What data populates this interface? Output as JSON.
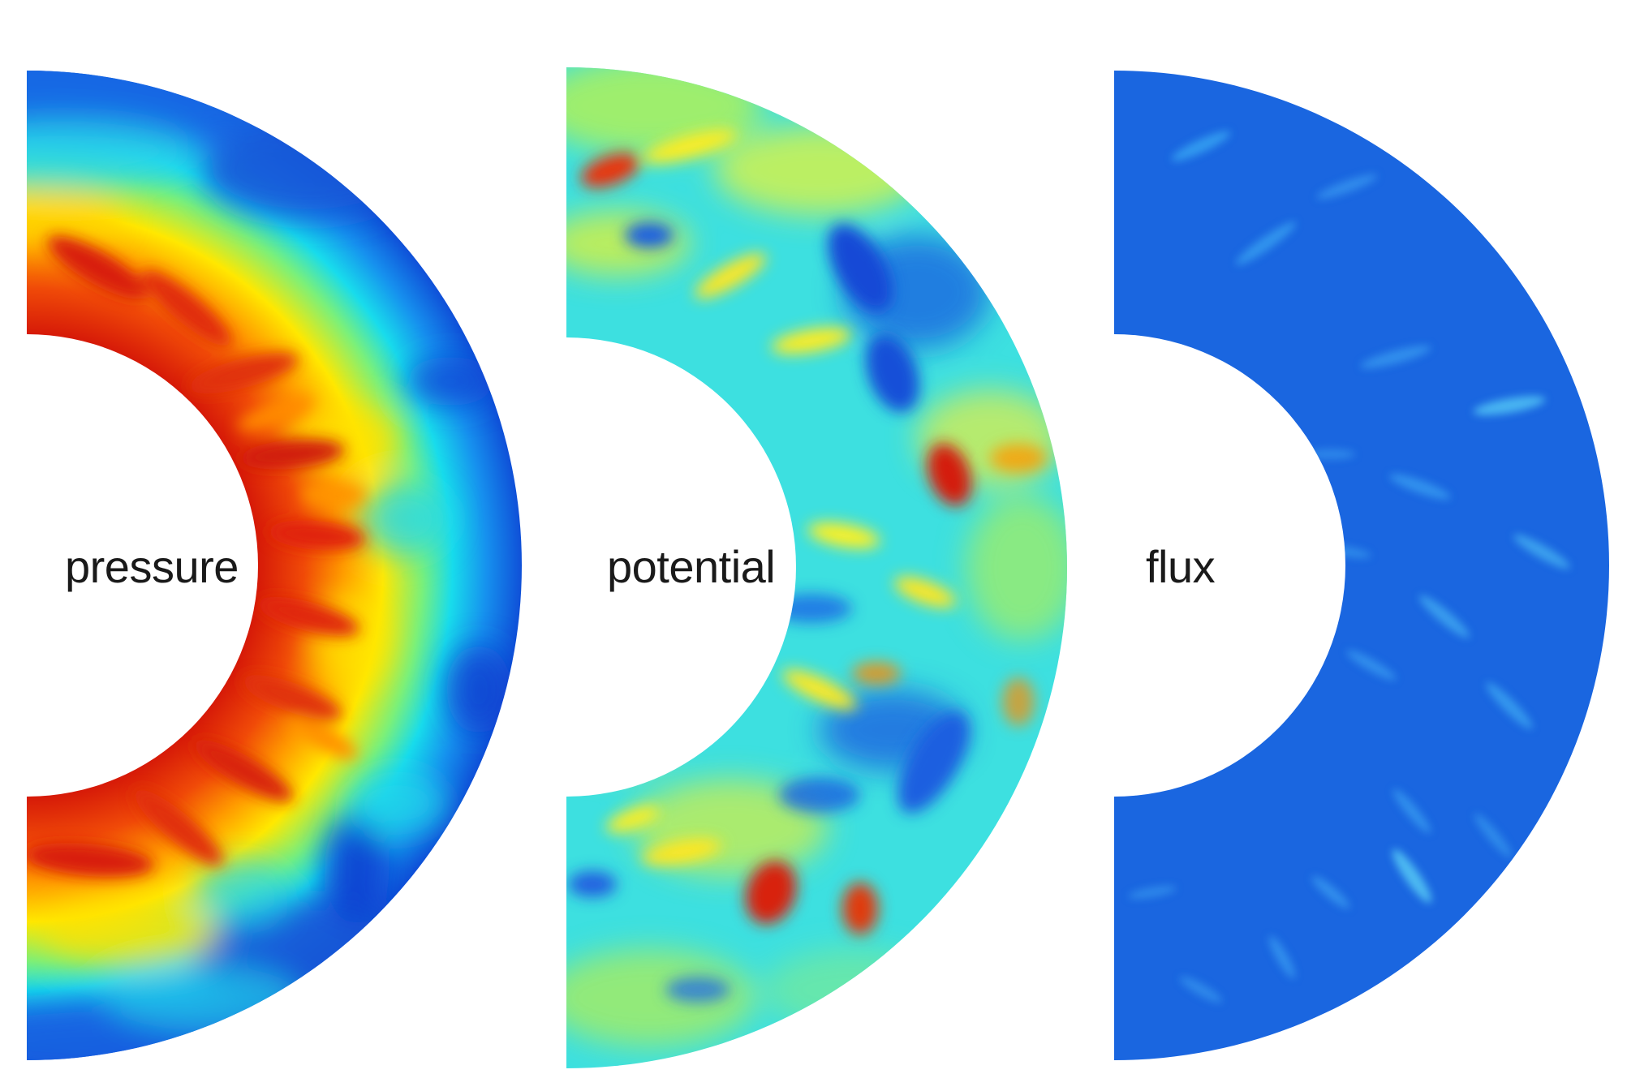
{
  "panels": [
    {
      "label": "pressure",
      "colormap": "jet",
      "dominant_colors": [
        "#d81c0c",
        "#ff8a00",
        "#ffee00",
        "#19e0e8",
        "#1664e0"
      ]
    },
    {
      "label": "potential",
      "colormap": "jet",
      "dominant_colors": [
        "#2ee6e6",
        "#e8f43a",
        "#1a5ce0",
        "#e0280c"
      ]
    },
    {
      "label": "flux",
      "colormap": "jet",
      "dominant_colors": [
        "#1a66e0",
        "#2a8cf0",
        "#4ac8f4"
      ]
    }
  ]
}
